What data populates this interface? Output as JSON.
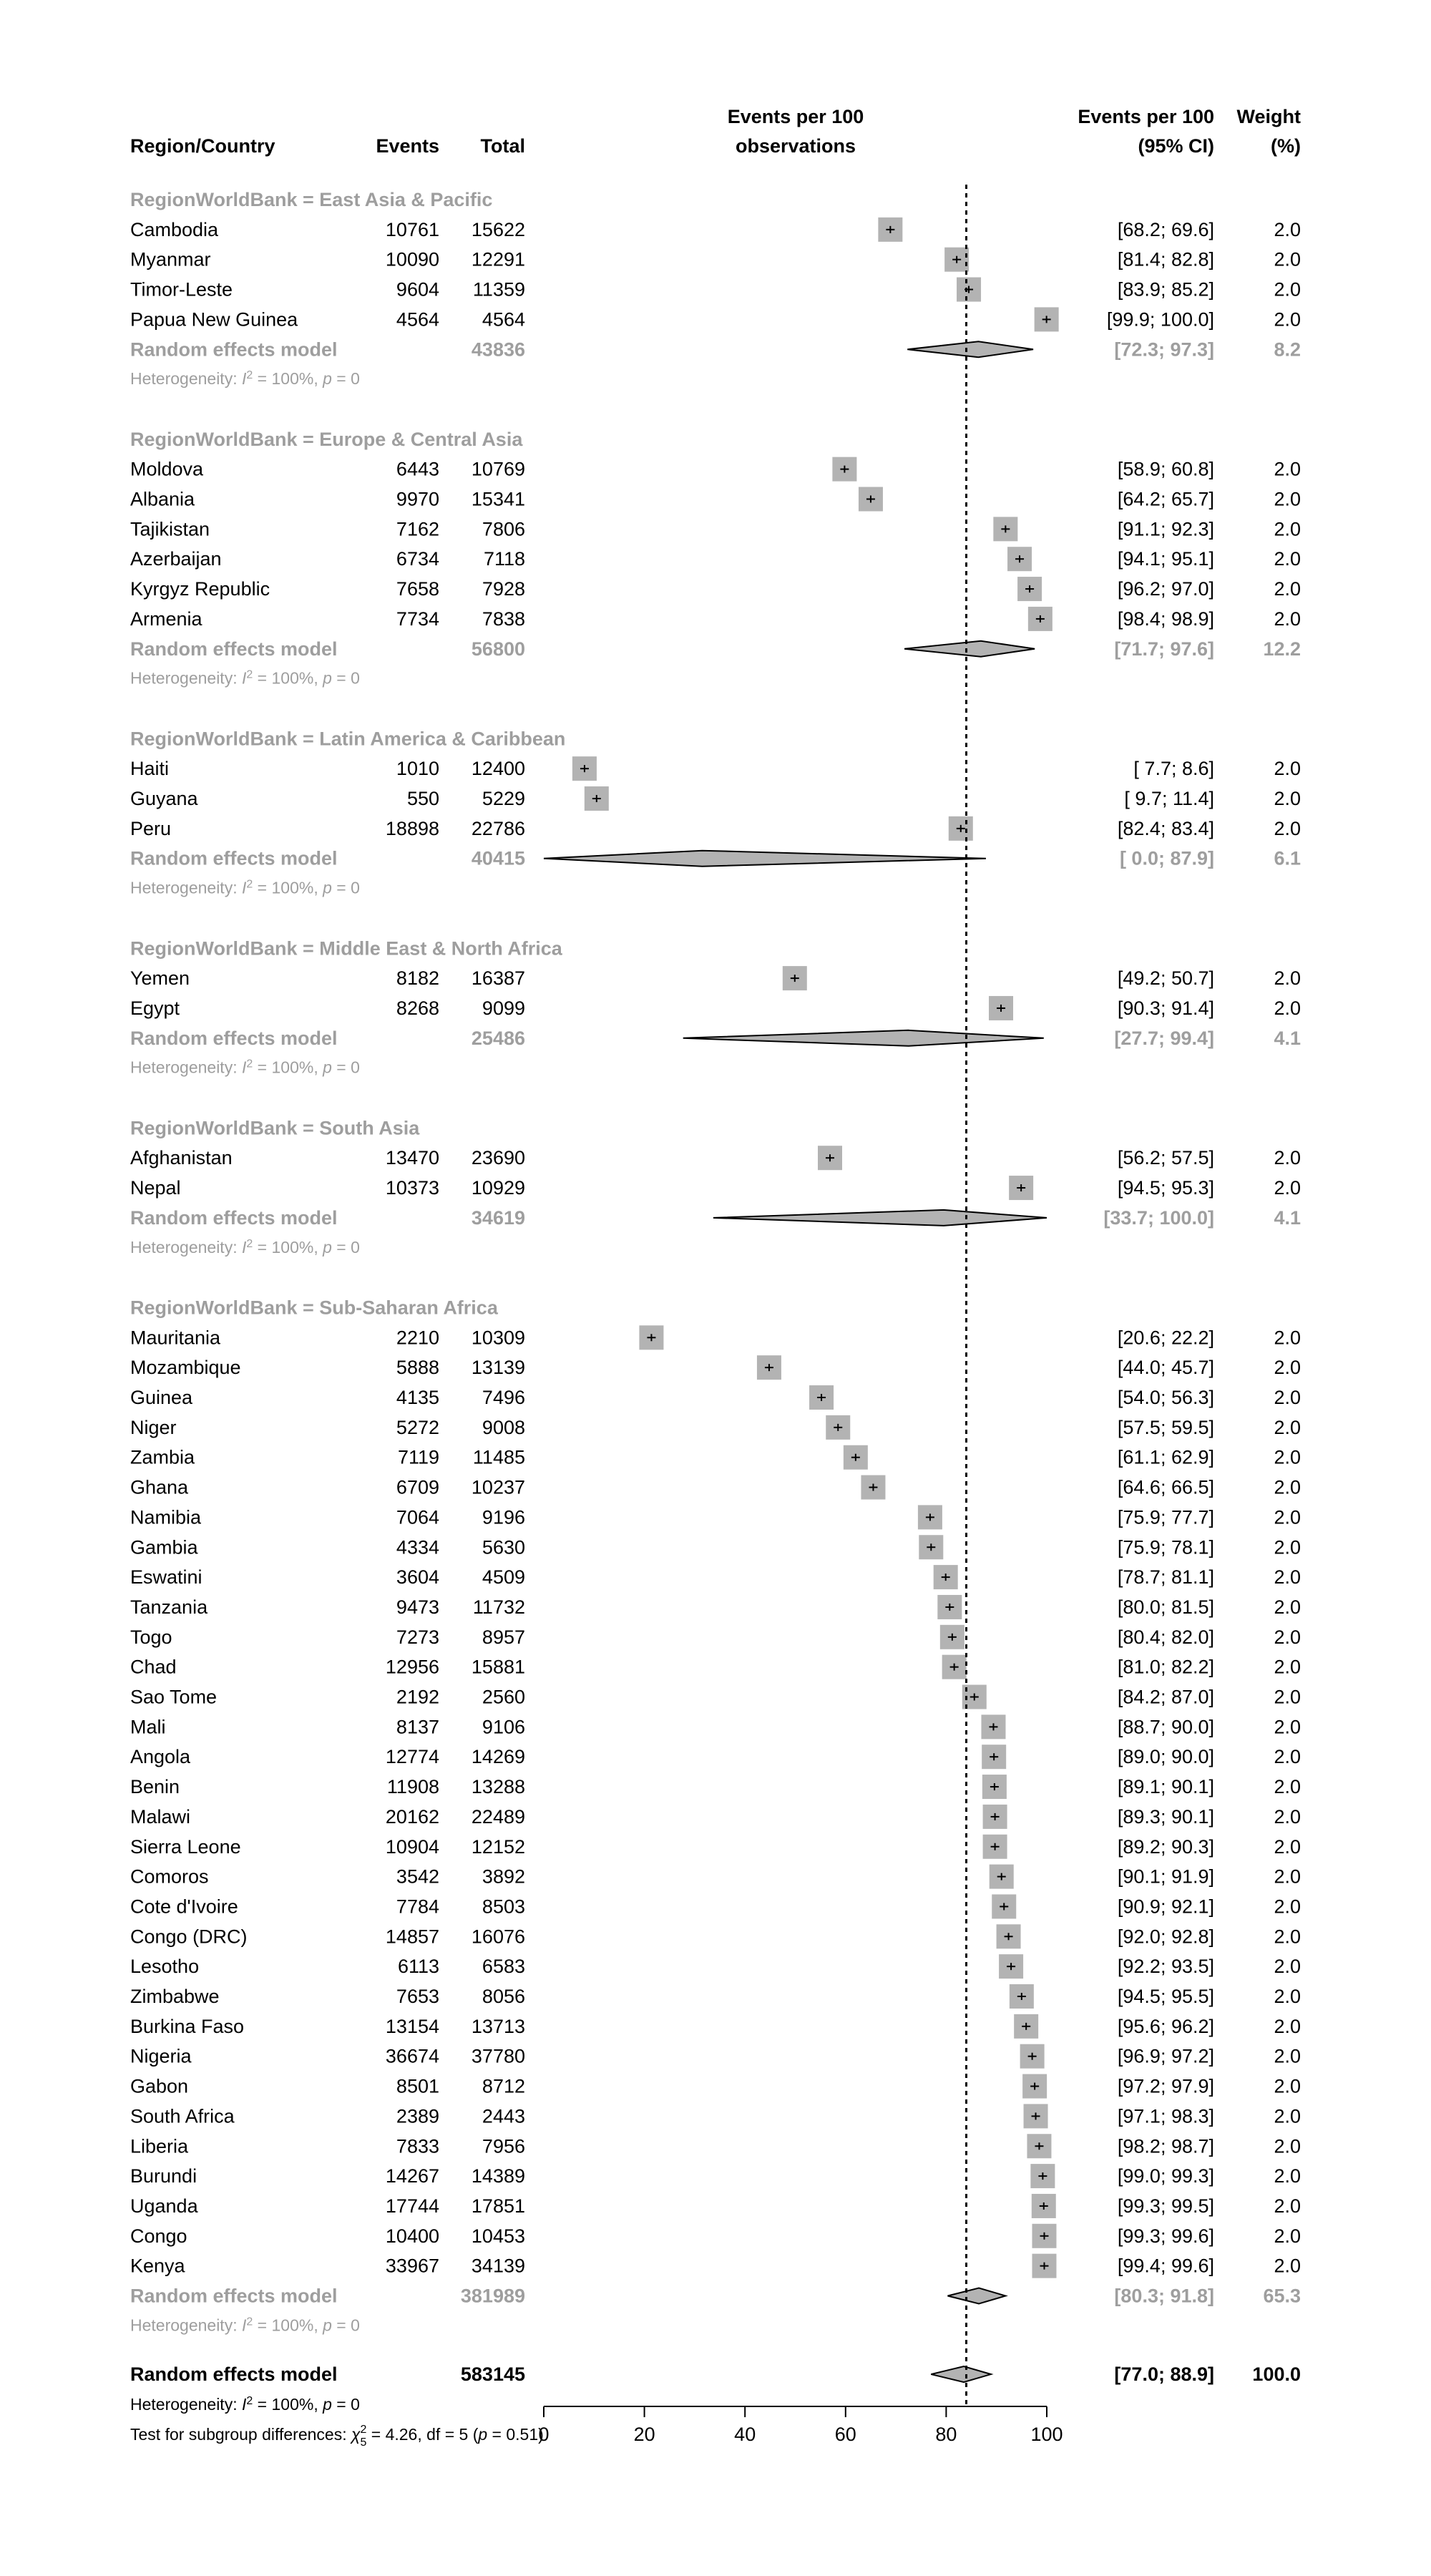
{
  "header": {
    "region_country": "Region/Country",
    "events": "Events",
    "total": "Total",
    "plot_line1": "Events per 100",
    "plot_line2": "observations",
    "ci_line1": "Events per 100",
    "ci_line2": "(95% CI)",
    "weight_line1": "Weight",
    "weight_line2": "(%)"
  },
  "chart_data": {
    "type": "forest",
    "xlim": [
      0,
      100
    ],
    "x_ticks": [
      "0",
      "20",
      "40",
      "60",
      "80",
      "100"
    ],
    "reference_line": 84.0,
    "groups": [
      {
        "label": "RegionWorldBank = East Asia & Pacific",
        "rows": [
          {
            "name": "Cambodia",
            "events": "10761",
            "total": "15622",
            "est": 68.9,
            "ci_text": "[68.2;  69.6]",
            "weight": "2.0"
          },
          {
            "name": "Myanmar",
            "events": "10090",
            "total": "12291",
            "est": 82.1,
            "ci_text": "[81.4;  82.8]",
            "weight": "2.0"
          },
          {
            "name": "Timor-Leste",
            "events": "9604",
            "total": "11359",
            "est": 84.5,
            "ci_text": "[83.9;  85.2]",
            "weight": "2.0"
          },
          {
            "name": "Papua New Guinea",
            "events": "4564",
            "total": "4564",
            "est": 99.95,
            "ci_text": "[99.9; 100.0]",
            "weight": "2.0"
          }
        ],
        "model": {
          "label": "Random effects model",
          "total": "43836",
          "est": 86.4,
          "lo": 72.3,
          "hi": 97.3,
          "ci_text": "[72.3;  97.3]",
          "weight": "8.2"
        },
        "heterogeneity": {
          "prefix": "Heterogeneity: ",
          "i_symbol": "I",
          "sup": "2",
          "mid": " = 100%, ",
          "p_symbol": "p",
          "suffix": " = 0"
        }
      },
      {
        "label": "RegionWorldBank = Europe & Central Asia",
        "rows": [
          {
            "name": "Moldova",
            "events": "6443",
            "total": "10769",
            "est": 59.8,
            "ci_text": "[58.9;  60.8]",
            "weight": "2.0"
          },
          {
            "name": "Albania",
            "events": "9970",
            "total": "15341",
            "est": 65.0,
            "ci_text": "[64.2;  65.7]",
            "weight": "2.0"
          },
          {
            "name": "Tajikistan",
            "events": "7162",
            "total": "7806",
            "est": 91.8,
            "ci_text": "[91.1;  92.3]",
            "weight": "2.0"
          },
          {
            "name": "Azerbaijan",
            "events": "6734",
            "total": "7118",
            "est": 94.6,
            "ci_text": "[94.1;  95.1]",
            "weight": "2.0"
          },
          {
            "name": "Kyrgyz Republic",
            "events": "7658",
            "total": "7928",
            "est": 96.6,
            "ci_text": "[96.2;  97.0]",
            "weight": "2.0"
          },
          {
            "name": "Armenia",
            "events": "7734",
            "total": "7838",
            "est": 98.7,
            "ci_text": "[98.4;  98.9]",
            "weight": "2.0"
          }
        ],
        "model": {
          "label": "Random effects model",
          "total": "56800",
          "est": 86.9,
          "lo": 71.7,
          "hi": 97.6,
          "ci_text": "[71.7;  97.6]",
          "weight": "12.2"
        },
        "heterogeneity": {
          "prefix": "Heterogeneity: ",
          "i_symbol": "I",
          "sup": "2",
          "mid": " = 100%, ",
          "p_symbol": "p",
          "suffix": " = 0"
        }
      },
      {
        "label": "RegionWorldBank = Latin America & Caribbean",
        "rows": [
          {
            "name": "Haiti",
            "events": "1010",
            "total": "12400",
            "est": 8.1,
            "ci_text": "[ 7.7;   8.6]",
            "weight": "2.0"
          },
          {
            "name": "Guyana",
            "events": "550",
            "total": "5229",
            "est": 10.5,
            "ci_text": "[ 9.7;  11.4]",
            "weight": "2.0"
          },
          {
            "name": "Peru",
            "events": "18898",
            "total": "22786",
            "est": 82.9,
            "ci_text": "[82.4;  83.4]",
            "weight": "2.0"
          }
        ],
        "model": {
          "label": "Random effects model",
          "total": "40415",
          "est": 31.5,
          "lo": 0.0,
          "hi": 87.9,
          "ci_text": "[ 0.0;  87.9]",
          "weight": "6.1"
        },
        "heterogeneity": {
          "prefix": "Heterogeneity: ",
          "i_symbol": "I",
          "sup": "2",
          "mid": " = 100%, ",
          "p_symbol": "p",
          "suffix": " = 0"
        }
      },
      {
        "label": "RegionWorldBank = Middle East & North Africa",
        "rows": [
          {
            "name": "Yemen",
            "events": "8182",
            "total": "16387",
            "est": 49.9,
            "ci_text": "[49.2;  50.7]",
            "weight": "2.0"
          },
          {
            "name": "Egypt",
            "events": "8268",
            "total": "9099",
            "est": 90.9,
            "ci_text": "[90.3;  91.4]",
            "weight": "2.0"
          }
        ],
        "model": {
          "label": "Random effects model",
          "total": "25486",
          "est": 72.5,
          "lo": 27.7,
          "hi": 99.4,
          "ci_text": "[27.7;  99.4]",
          "weight": "4.1"
        },
        "heterogeneity": {
          "prefix": "Heterogeneity: ",
          "i_symbol": "I",
          "sup": "2",
          "mid": " = 100%, ",
          "p_symbol": "p",
          "suffix": " = 0"
        }
      },
      {
        "label": "RegionWorldBank = South Asia",
        "rows": [
          {
            "name": "Afghanistan",
            "events": "13470",
            "total": "23690",
            "est": 56.9,
            "ci_text": "[56.2;  57.5]",
            "weight": "2.0"
          },
          {
            "name": "Nepal",
            "events": "10373",
            "total": "10929",
            "est": 94.9,
            "ci_text": "[94.5;  95.3]",
            "weight": "2.0"
          }
        ],
        "model": {
          "label": "Random effects model",
          "total": "34619",
          "est": 79.5,
          "lo": 33.7,
          "hi": 100.0,
          "ci_text": "[33.7; 100.0]",
          "weight": "4.1"
        },
        "heterogeneity": {
          "prefix": "Heterogeneity: ",
          "i_symbol": "I",
          "sup": "2",
          "mid": " = 100%, ",
          "p_symbol": "p",
          "suffix": " = 0"
        }
      },
      {
        "label": "RegionWorldBank = Sub-Saharan Africa",
        "rows": [
          {
            "name": "Mauritania",
            "events": "2210",
            "total": "10309",
            "est": 21.4,
            "ci_text": "[20.6;  22.2]",
            "weight": "2.0"
          },
          {
            "name": "Mozambique",
            "events": "5888",
            "total": "13139",
            "est": 44.8,
            "ci_text": "[44.0;  45.7]",
            "weight": "2.0"
          },
          {
            "name": "Guinea",
            "events": "4135",
            "total": "7496",
            "est": 55.2,
            "ci_text": "[54.0;  56.3]",
            "weight": "2.0"
          },
          {
            "name": "Niger",
            "events": "5272",
            "total": "9008",
            "est": 58.5,
            "ci_text": "[57.5;  59.5]",
            "weight": "2.0"
          },
          {
            "name": "Zambia",
            "events": "7119",
            "total": "11485",
            "est": 62.0,
            "ci_text": "[61.1;  62.9]",
            "weight": "2.0"
          },
          {
            "name": "Ghana",
            "events": "6709",
            "total": "10237",
            "est": 65.5,
            "ci_text": "[64.6;  66.5]",
            "weight": "2.0"
          },
          {
            "name": "Namibia",
            "events": "7064",
            "total": "9196",
            "est": 76.8,
            "ci_text": "[75.9;  77.7]",
            "weight": "2.0"
          },
          {
            "name": "Gambia",
            "events": "4334",
            "total": "5630",
            "est": 77.0,
            "ci_text": "[75.9;  78.1]",
            "weight": "2.0"
          },
          {
            "name": "Eswatini",
            "events": "3604",
            "total": "4509",
            "est": 79.9,
            "ci_text": "[78.7;  81.1]",
            "weight": "2.0"
          },
          {
            "name": "Tanzania",
            "events": "9473",
            "total": "11732",
            "est": 80.7,
            "ci_text": "[80.0;  81.5]",
            "weight": "2.0"
          },
          {
            "name": "Togo",
            "events": "7273",
            "total": "8957",
            "est": 81.2,
            "ci_text": "[80.4;  82.0]",
            "weight": "2.0"
          },
          {
            "name": "Chad",
            "events": "12956",
            "total": "15881",
            "est": 81.6,
            "ci_text": "[81.0;  82.2]",
            "weight": "2.0"
          },
          {
            "name": "Sao Tome",
            "events": "2192",
            "total": "2560",
            "est": 85.6,
            "ci_text": "[84.2;  87.0]",
            "weight": "2.0"
          },
          {
            "name": "Mali",
            "events": "8137",
            "total": "9106",
            "est": 89.4,
            "ci_text": "[88.7;  90.0]",
            "weight": "2.0"
          },
          {
            "name": "Angola",
            "events": "12774",
            "total": "14269",
            "est": 89.5,
            "ci_text": "[89.0;  90.0]",
            "weight": "2.0"
          },
          {
            "name": "Benin",
            "events": "11908",
            "total": "13288",
            "est": 89.6,
            "ci_text": "[89.1;  90.1]",
            "weight": "2.0"
          },
          {
            "name": "Malawi",
            "events": "20162",
            "total": "22489",
            "est": 89.7,
            "ci_text": "[89.3;  90.1]",
            "weight": "2.0"
          },
          {
            "name": "Sierra Leone",
            "events": "10904",
            "total": "12152",
            "est": 89.7,
            "ci_text": "[89.2;  90.3]",
            "weight": "2.0"
          },
          {
            "name": "Comoros",
            "events": "3542",
            "total": "3892",
            "est": 91.0,
            "ci_text": "[90.1;  91.9]",
            "weight": "2.0"
          },
          {
            "name": "Cote d'Ivoire",
            "events": "7784",
            "total": "8503",
            "est": 91.5,
            "ci_text": "[90.9;  92.1]",
            "weight": "2.0"
          },
          {
            "name": "Congo (DRC)",
            "events": "14857",
            "total": "16076",
            "est": 92.4,
            "ci_text": "[92.0;  92.8]",
            "weight": "2.0"
          },
          {
            "name": "Lesotho",
            "events": "6113",
            "total": "6583",
            "est": 92.9,
            "ci_text": "[92.2;  93.5]",
            "weight": "2.0"
          },
          {
            "name": "Zimbabwe",
            "events": "7653",
            "total": "8056",
            "est": 95.0,
            "ci_text": "[94.5;  95.5]",
            "weight": "2.0"
          },
          {
            "name": "Burkina Faso",
            "events": "13154",
            "total": "13713",
            "est": 95.9,
            "ci_text": "[95.6;  96.2]",
            "weight": "2.0"
          },
          {
            "name": "Nigeria",
            "events": "36674",
            "total": "37780",
            "est": 97.1,
            "ci_text": "[96.9;  97.2]",
            "weight": "2.0"
          },
          {
            "name": "Gabon",
            "events": "8501",
            "total": "8712",
            "est": 97.6,
            "ci_text": "[97.2;  97.9]",
            "weight": "2.0"
          },
          {
            "name": "South Africa",
            "events": "2389",
            "total": "2443",
            "est": 97.8,
            "ci_text": "[97.1;  98.3]",
            "weight": "2.0"
          },
          {
            "name": "Liberia",
            "events": "7833",
            "total": "7956",
            "est": 98.5,
            "ci_text": "[98.2;  98.7]",
            "weight": "2.0"
          },
          {
            "name": "Burundi",
            "events": "14267",
            "total": "14389",
            "est": 99.2,
            "ci_text": "[99.0;  99.3]",
            "weight": "2.0"
          },
          {
            "name": "Uganda",
            "events": "17744",
            "total": "17851",
            "est": 99.4,
            "ci_text": "[99.3;  99.5]",
            "weight": "2.0"
          },
          {
            "name": "Congo",
            "events": "10400",
            "total": "10453",
            "est": 99.5,
            "ci_text": "[99.3;  99.6]",
            "weight": "2.0"
          },
          {
            "name": "Kenya",
            "events": "33967",
            "total": "34139",
            "est": 99.5,
            "ci_text": "[99.4;  99.6]",
            "weight": "2.0"
          }
        ],
        "model": {
          "label": "Random effects model",
          "total": "381989",
          "est": 86.5,
          "lo": 80.3,
          "hi": 91.8,
          "ci_text": "[80.3;  91.8]",
          "weight": "65.3"
        },
        "heterogeneity": {
          "prefix": "Heterogeneity: ",
          "i_symbol": "I",
          "sup": "2",
          "mid": " = 100%, ",
          "p_symbol": "p",
          "suffix": " = 0"
        }
      }
    ],
    "overall": {
      "label": "Random effects model",
      "total": "583145",
      "est": 83.5,
      "lo": 77.0,
      "hi": 88.9,
      "ci_text": "[77.0;  88.9]",
      "weight": "100.0",
      "heterogeneity": {
        "prefix": "Heterogeneity: ",
        "i_symbol": "I",
        "sup": "2",
        "mid": " = 100%, ",
        "p_symbol": "p",
        "suffix": " = 0"
      },
      "subgroup_test": {
        "prefix": "Test for subgroup differences: ",
        "chi": "χ",
        "sup": "2",
        "sub": "5",
        "mid": " = 4.26, df = 5 (",
        "p_symbol": "p",
        "suffix": " = 0.51)"
      }
    }
  },
  "colors": {
    "square_fill": "#b3b3b3",
    "diamond_fill": "#b3b3b3",
    "muted_text": "#9e9e9e",
    "line": "#000000"
  }
}
